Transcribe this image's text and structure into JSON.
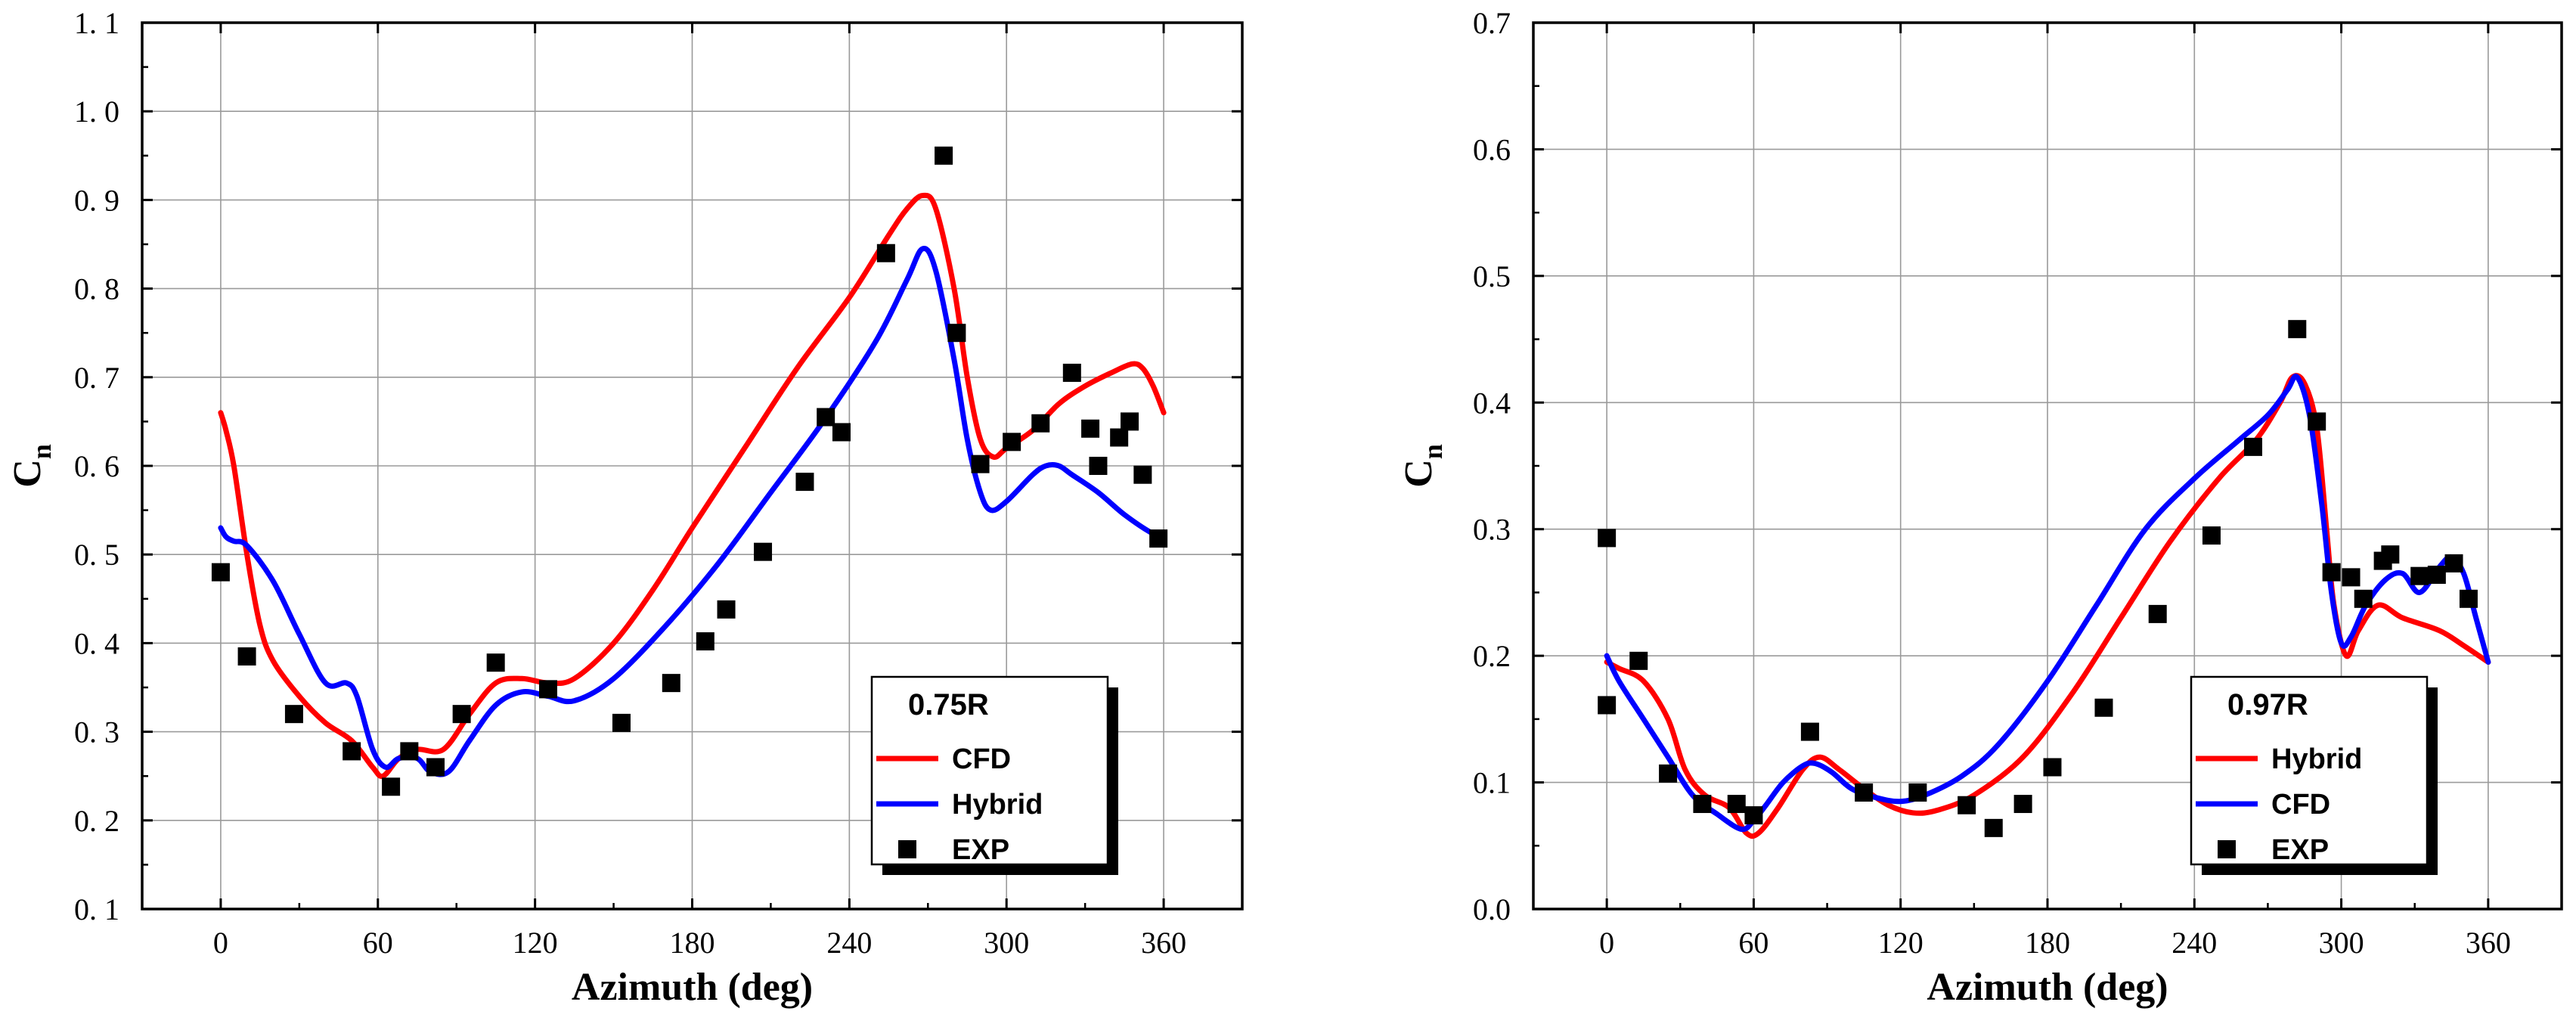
{
  "chart_data": [
    {
      "type": "line",
      "xlabel": "Azimuth (deg)",
      "ylabel_main": "C",
      "ylabel_sub": "n",
      "xlim": [
        -30,
        390
      ],
      "ylim": [
        0.1,
        1.1
      ],
      "xticks": [
        0,
        60,
        120,
        180,
        240,
        300,
        360
      ],
      "xtick_labels": [
        "0",
        "60",
        "120",
        "180",
        "240",
        "300",
        "360"
      ],
      "yticks": [
        0.1,
        0.2,
        0.3,
        0.4,
        0.5,
        0.6,
        0.7,
        0.8,
        0.9,
        1.0,
        1.1
      ],
      "ytick_labels": [
        "0. 1",
        "0. 2",
        "0. 3",
        "0. 4",
        "0. 5",
        "0. 6",
        "0. 7",
        "0. 8",
        "0. 9",
        "1. 0",
        "1. 1"
      ],
      "grid": true,
      "legend_title": "0.75R",
      "legend_position": "bottom-right",
      "series": [
        {
          "name": "CFD",
          "kind": "line",
          "color": "#ff0000",
          "x": [
            0,
            2,
            5,
            10,
            15,
            20,
            30,
            40,
            50,
            58,
            62,
            68,
            75,
            85,
            95,
            105,
            115,
            125,
            135,
            150,
            165,
            180,
            200,
            220,
            240,
            255,
            262,
            268,
            273,
            280,
            285,
            290,
            295,
            300,
            310,
            320,
            330,
            340,
            348,
            352,
            356,
            360
          ],
          "y": [
            0.66,
            0.64,
            0.6,
            0.5,
            0.42,
            0.38,
            0.34,
            0.31,
            0.29,
            0.26,
            0.25,
            0.27,
            0.28,
            0.28,
            0.32,
            0.355,
            0.36,
            0.355,
            0.36,
            0.4,
            0.46,
            0.53,
            0.62,
            0.71,
            0.79,
            0.86,
            0.89,
            0.905,
            0.89,
            0.8,
            0.7,
            0.63,
            0.61,
            0.62,
            0.64,
            0.67,
            0.69,
            0.705,
            0.715,
            0.71,
            0.69,
            0.66
          ]
        },
        {
          "name": "Hybrid",
          "kind": "line",
          "color": "#0000ff",
          "x": [
            0,
            2,
            5,
            10,
            20,
            30,
            40,
            48,
            52,
            58,
            63,
            68,
            75,
            80,
            87,
            95,
            105,
            115,
            125,
            135,
            150,
            170,
            190,
            210,
            230,
            250,
            262,
            268,
            273,
            280,
            285,
            290,
            294,
            300,
            310,
            315,
            320,
            325,
            335,
            345,
            355,
            360
          ],
          "y": [
            0.53,
            0.52,
            0.515,
            0.51,
            0.47,
            0.41,
            0.355,
            0.355,
            0.34,
            0.28,
            0.26,
            0.27,
            0.27,
            0.255,
            0.255,
            0.29,
            0.33,
            0.345,
            0.34,
            0.335,
            0.36,
            0.42,
            0.49,
            0.57,
            0.65,
            0.74,
            0.81,
            0.845,
            0.82,
            0.72,
            0.63,
            0.57,
            0.55,
            0.56,
            0.59,
            0.6,
            0.6,
            0.59,
            0.57,
            0.545,
            0.525,
            0.52
          ]
        },
        {
          "name": "EXP",
          "kind": "scatter",
          "color": "#000000",
          "x": [
            0,
            10,
            28,
            50,
            65,
            72,
            82,
            92,
            105,
            125,
            153,
            172,
            185,
            193,
            207,
            223,
            231,
            237,
            254,
            276,
            281,
            290,
            302,
            313,
            325,
            332,
            335,
            343,
            347,
            352,
            358
          ],
          "y": [
            0.48,
            0.385,
            0.32,
            0.278,
            0.238,
            0.278,
            0.26,
            0.32,
            0.378,
            0.348,
            0.31,
            0.355,
            0.402,
            0.438,
            0.503,
            0.582,
            0.655,
            0.638,
            0.84,
            0.95,
            0.75,
            0.602,
            0.627,
            0.648,
            0.705,
            0.642,
            0.6,
            0.632,
            0.65,
            0.59,
            0.518
          ]
        }
      ]
    },
    {
      "type": "line",
      "xlabel": "Azimuth (deg)",
      "ylabel_main": "C",
      "ylabel_sub": "n",
      "xlim": [
        -30,
        390
      ],
      "ylim": [
        0.0,
        0.7
      ],
      "xticks": [
        0,
        60,
        120,
        180,
        240,
        300,
        360
      ],
      "xtick_labels": [
        "0",
        "60",
        "120",
        "180",
        "240",
        "300",
        "360"
      ],
      "yticks": [
        0.0,
        0.1,
        0.2,
        0.3,
        0.4,
        0.5,
        0.6,
        0.7
      ],
      "ytick_labels": [
        "0.0",
        "0.1",
        "0.2",
        "0.3",
        "0.4",
        "0.5",
        "0.6",
        "0.7"
      ],
      "grid": true,
      "legend_title": "0.97R",
      "legend_position": "bottom-right",
      "series": [
        {
          "name": "Hybrid",
          "kind": "line",
          "color": "#ff0000",
          "x": [
            0,
            5,
            15,
            25,
            32,
            40,
            50,
            57,
            62,
            70,
            80,
            87,
            95,
            105,
            115,
            125,
            135,
            150,
            170,
            190,
            210,
            230,
            250,
            265,
            275,
            280,
            285,
            290,
            294,
            297,
            302,
            307,
            315,
            325,
            340,
            350,
            360
          ],
          "y": [
            0.195,
            0.19,
            0.18,
            0.15,
            0.11,
            0.09,
            0.08,
            0.06,
            0.06,
            0.08,
            0.11,
            0.12,
            0.11,
            0.095,
            0.082,
            0.076,
            0.078,
            0.09,
            0.12,
            0.17,
            0.23,
            0.29,
            0.34,
            0.37,
            0.4,
            0.42,
            0.415,
            0.38,
            0.3,
            0.24,
            0.2,
            0.22,
            0.24,
            0.23,
            0.22,
            0.208,
            0.195
          ]
        },
        {
          "name": "CFD",
          "kind": "line",
          "color": "#0000ff",
          "x": [
            0,
            5,
            15,
            25,
            35,
            45,
            55,
            60,
            65,
            72,
            80,
            85,
            92,
            100,
            110,
            120,
            130,
            145,
            160,
            180,
            200,
            220,
            240,
            258,
            270,
            278,
            282,
            287,
            292,
            296,
            300,
            304,
            310,
            318,
            325,
            332,
            340,
            345,
            350,
            355,
            360
          ],
          "y": [
            0.2,
            0.18,
            0.15,
            0.12,
            0.09,
            0.075,
            0.063,
            0.07,
            0.082,
            0.1,
            0.113,
            0.115,
            0.108,
            0.095,
            0.088,
            0.085,
            0.09,
            0.105,
            0.13,
            0.18,
            0.24,
            0.3,
            0.34,
            0.37,
            0.39,
            0.41,
            0.42,
            0.39,
            0.32,
            0.25,
            0.21,
            0.215,
            0.24,
            0.26,
            0.265,
            0.25,
            0.27,
            0.278,
            0.265,
            0.23,
            0.195
          ]
        },
        {
          "name": "EXP",
          "kind": "scatter",
          "color": "#000000",
          "x": [
            0,
            0,
            13,
            25,
            39,
            53,
            60,
            83,
            105,
            127,
            147,
            158,
            170,
            182,
            203,
            225,
            247,
            264,
            282,
            290,
            296,
            304,
            309,
            317,
            320,
            332,
            339,
            346,
            352
          ],
          "y": [
            0.293,
            0.161,
            0.196,
            0.107,
            0.083,
            0.083,
            0.074,
            0.14,
            0.092,
            0.092,
            0.082,
            0.064,
            0.083,
            0.112,
            0.159,
            0.233,
            0.295,
            0.365,
            0.458,
            0.385,
            0.266,
            0.262,
            0.245,
            0.275,
            0.28,
            0.263,
            0.264,
            0.273,
            0.245
          ]
        }
      ]
    }
  ]
}
